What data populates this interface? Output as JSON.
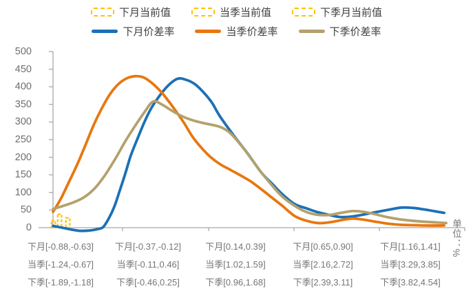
{
  "unit_label": "单位：%",
  "chart_data": {
    "type": "line",
    "title": "",
    "xlabel": "",
    "ylabel": "单位：%",
    "ylim": [
      0,
      500
    ],
    "yticks": [
      0,
      50,
      100,
      150,
      200,
      250,
      300,
      350,
      400,
      450,
      500
    ],
    "grid": false,
    "legend_position": "top",
    "x_labels": {
      "row1": [
        "下月[-0.88,-0.63]",
        "下月[-0.37,-0.12]",
        "下月[0.14,0.39]",
        "下月[0.65,0.90]",
        "下月[1.16,1.41]"
      ],
      "row2": [
        "当季[-1.24,-0.67]",
        "当季[-0.11,0.46]",
        "当季[1.02,1.59]",
        "当季[2.16,2.72]",
        "当季[3.29,3.85]"
      ],
      "row3": [
        "下季[-1.89,-1.18]",
        "下季[-0.46,0.25]",
        "下季[0.96,1.68]",
        "下季[2.39,3.11]",
        "下季[3.82,4.54]"
      ]
    },
    "axis_color": "#A8A8A8",
    "bar_color": "#FFC000",
    "current_value_bars": [
      {
        "name": "下月当前值",
        "x": 0.001,
        "value": 20
      },
      {
        "name": "当季当前值",
        "x": 0.016,
        "value": 38
      },
      {
        "name": "下季月当前值",
        "x": 0.036,
        "value": 28
      }
    ],
    "series": [
      {
        "name": "下月价差率",
        "color": "#1C70B6",
        "points": [
          [
            0,
            5
          ],
          [
            0.022,
            0
          ],
          [
            0.043,
            -5
          ],
          [
            0.065,
            -9
          ],
          [
            0.089,
            -8
          ],
          [
            0.109,
            -4
          ],
          [
            0.122,
            2
          ],
          [
            0.135,
            25
          ],
          [
            0.149,
            60
          ],
          [
            0.162,
            105
          ],
          [
            0.176,
            155
          ],
          [
            0.189,
            205
          ],
          [
            0.206,
            255
          ],
          [
            0.222,
            300
          ],
          [
            0.239,
            340
          ],
          [
            0.259,
            375
          ],
          [
            0.281,
            405
          ],
          [
            0.303,
            423
          ],
          [
            0.323,
            420
          ],
          [
            0.344,
            408
          ],
          [
            0.365,
            385
          ],
          [
            0.386,
            355
          ],
          [
            0.406,
            315
          ],
          [
            0.44,
            260
          ],
          [
            0.473,
            210
          ],
          [
            0.507,
            155
          ],
          [
            0.532,
            125
          ],
          [
            0.557,
            95
          ],
          [
            0.587,
            67
          ],
          [
            0.615,
            55
          ],
          [
            0.64,
            45
          ],
          [
            0.671,
            36
          ],
          [
            0.699,
            30
          ],
          [
            0.728,
            32
          ],
          [
            0.758,
            38
          ],
          [
            0.788,
            45
          ],
          [
            0.816,
            51
          ],
          [
            0.846,
            57
          ],
          [
            0.875,
            56
          ],
          [
            0.9,
            52
          ],
          [
            0.925,
            47
          ],
          [
            0.95,
            42
          ]
        ]
      },
      {
        "name": "当季价差率",
        "color": "#E8770F",
        "points": [
          [
            0,
            45
          ],
          [
            0.018,
            80
          ],
          [
            0.038,
            128
          ],
          [
            0.059,
            180
          ],
          [
            0.079,
            235
          ],
          [
            0.099,
            292
          ],
          [
            0.119,
            340
          ],
          [
            0.139,
            380
          ],
          [
            0.159,
            408
          ],
          [
            0.179,
            424
          ],
          [
            0.199,
            430
          ],
          [
            0.219,
            427
          ],
          [
            0.239,
            412
          ],
          [
            0.259,
            390
          ],
          [
            0.279,
            362
          ],
          [
            0.299,
            330
          ],
          [
            0.319,
            296
          ],
          [
            0.339,
            258
          ],
          [
            0.361,
            226
          ],
          [
            0.383,
            200
          ],
          [
            0.406,
            180
          ],
          [
            0.431,
            164
          ],
          [
            0.456,
            148
          ],
          [
            0.482,
            130
          ],
          [
            0.507,
            108
          ],
          [
            0.532,
            85
          ],
          [
            0.557,
            62
          ],
          [
            0.587,
            33
          ],
          [
            0.615,
            20
          ],
          [
            0.644,
            13
          ],
          [
            0.671,
            15
          ],
          [
            0.699,
            21
          ],
          [
            0.728,
            26
          ],
          [
            0.758,
            22
          ],
          [
            0.788,
            16
          ],
          [
            0.816,
            11
          ],
          [
            0.846,
            8
          ],
          [
            0.875,
            7
          ],
          [
            0.908,
            6
          ],
          [
            0.95,
            6
          ]
        ]
      },
      {
        "name": "下季价差率",
        "color": "#B4A16C",
        "points": [
          [
            0,
            53
          ],
          [
            0.025,
            62
          ],
          [
            0.05,
            72
          ],
          [
            0.075,
            86
          ],
          [
            0.1,
            110
          ],
          [
            0.125,
            147
          ],
          [
            0.151,
            195
          ],
          [
            0.176,
            246
          ],
          [
            0.201,
            292
          ],
          [
            0.222,
            328
          ],
          [
            0.243,
            358
          ],
          [
            0.264,
            350
          ],
          [
            0.289,
            332
          ],
          [
            0.314,
            316
          ],
          [
            0.339,
            305
          ],
          [
            0.365,
            297
          ],
          [
            0.39,
            291
          ],
          [
            0.41,
            284
          ],
          [
            0.431,
            268
          ],
          [
            0.456,
            235
          ],
          [
            0.482,
            195
          ],
          [
            0.507,
            155
          ],
          [
            0.532,
            120
          ],
          [
            0.557,
            88
          ],
          [
            0.587,
            62
          ],
          [
            0.612,
            46
          ],
          [
            0.64,
            37
          ],
          [
            0.671,
            36
          ],
          [
            0.699,
            42
          ],
          [
            0.728,
            47
          ],
          [
            0.754,
            45
          ],
          [
            0.783,
            38
          ],
          [
            0.811,
            30
          ],
          [
            0.841,
            24
          ],
          [
            0.87,
            20
          ],
          [
            0.9,
            17
          ],
          [
            0.928,
            15
          ],
          [
            0.955,
            13
          ]
        ]
      }
    ]
  }
}
